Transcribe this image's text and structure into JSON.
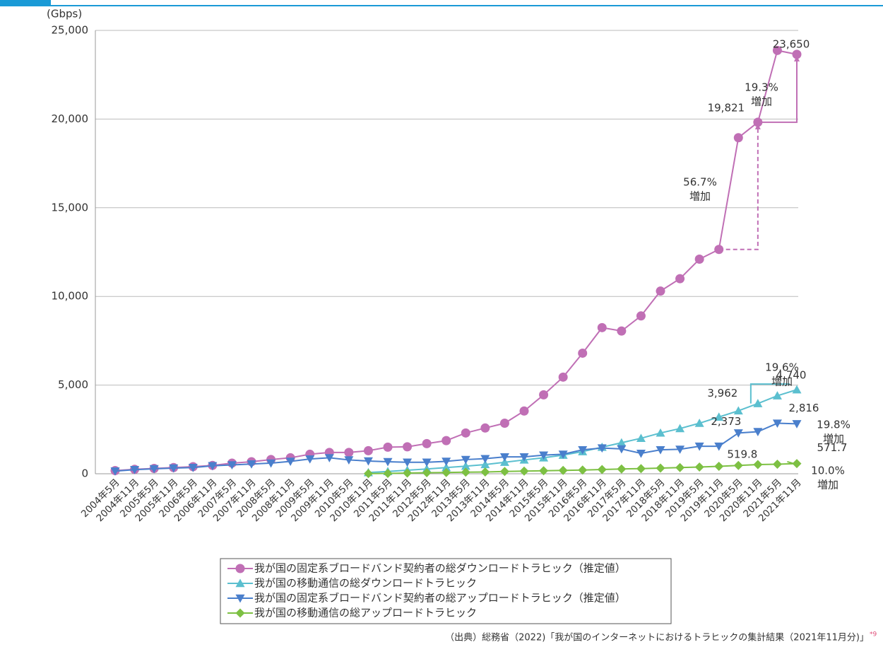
{
  "chart_data": {
    "type": "line",
    "unit_label": "(Gbps)",
    "categories": [
      "2004年5月",
      "2004年11月",
      "2005年5月",
      "2005年11月",
      "2006年5月",
      "2006年11月",
      "2007年5月",
      "2007年11月",
      "2008年5月",
      "2008年11月",
      "2009年5月",
      "2009年11月",
      "2010年5月",
      "2010年11月",
      "2011年5月",
      "2011年11月",
      "2012年5月",
      "2012年11月",
      "2013年5月",
      "2013年11月",
      "2014年5月",
      "2014年11月",
      "2015年5月",
      "2015年11月",
      "2016年5月",
      "2016年11月",
      "2017年5月",
      "2017年11月",
      "2018年5月",
      "2018年11月",
      "2019年5月",
      "2019年11月",
      "2020年5月",
      "2020年11月",
      "2021年5月",
      "2021年11月"
    ],
    "series": [
      {
        "name": "我が国の固定系ブロードバンド契約者の総ダウンロードトラヒック（推定値）",
        "color": "#c06fb5",
        "marker": "circle",
        "values": [
          180,
          250,
          300,
          350,
          400,
          470,
          600,
          680,
          800,
          900,
          1100,
          1200,
          1200,
          1300,
          1500,
          1520,
          1700,
          1870,
          2300,
          2580,
          2850,
          3540,
          4450,
          5450,
          6800,
          8240,
          8050,
          8900,
          10300,
          11000,
          12100,
          12650,
          18950,
          19821,
          23870,
          23650
        ],
        "value_labels": [
          null,
          null,
          null,
          null,
          null,
          null,
          null,
          null,
          null,
          null,
          null,
          null,
          null,
          null,
          null,
          null,
          null,
          null,
          null,
          null,
          null,
          null,
          null,
          null,
          null,
          null,
          null,
          null,
          null,
          null,
          null,
          null,
          null,
          "19,821",
          null,
          "23,650"
        ]
      },
      {
        "name": "我が国の移動通信の総ダウンロードトラヒック",
        "color": "#5bbfcf",
        "marker": "triangle-up",
        "values": [
          null,
          null,
          null,
          null,
          null,
          null,
          null,
          null,
          null,
          null,
          null,
          null,
          null,
          70,
          130,
          200,
          270,
          350,
          430,
          520,
          650,
          780,
          900,
          1050,
          1250,
          1500,
          1750,
          2000,
          2300,
          2550,
          2850,
          3200,
          3550,
          3962,
          4400,
          4740
        ],
        "value_labels": [
          null,
          null,
          null,
          null,
          null,
          null,
          null,
          null,
          null,
          null,
          null,
          null,
          null,
          null,
          null,
          null,
          null,
          null,
          null,
          null,
          null,
          null,
          null,
          null,
          null,
          null,
          null,
          null,
          null,
          null,
          null,
          null,
          null,
          "3,962",
          null,
          "4,740"
        ]
      },
      {
        "name": "我が国の固定系ブロードバンド契約者の総アップロードトラヒック（推定値）",
        "color": "#4a7fcc",
        "marker": "triangle-down",
        "values": [
          150,
          230,
          280,
          320,
          350,
          450,
          500,
          550,
          600,
          700,
          830,
          900,
          780,
          720,
          680,
          650,
          650,
          700,
          800,
          850,
          950,
          950,
          1050,
          1100,
          1350,
          1450,
          1400,
          1150,
          1350,
          1380,
          1550,
          1550,
          2300,
          2373,
          2850,
          2816
        ],
        "value_labels": [
          null,
          null,
          null,
          null,
          null,
          null,
          null,
          null,
          null,
          null,
          null,
          null,
          null,
          null,
          null,
          null,
          null,
          null,
          null,
          null,
          null,
          null,
          null,
          null,
          null,
          null,
          null,
          null,
          null,
          null,
          null,
          null,
          null,
          "2,373",
          null,
          "2,816"
        ]
      },
      {
        "name": "我が国の移動通信の総アップロードトラヒック",
        "color": "#7dc043",
        "marker": "diamond",
        "values": [
          null,
          null,
          null,
          null,
          null,
          null,
          null,
          null,
          null,
          null,
          null,
          null,
          null,
          10,
          20,
          40,
          60,
          70,
          90,
          100,
          130,
          150,
          170,
          190,
          210,
          240,
          270,
          290,
          320,
          350,
          380,
          420,
          470,
          519.8,
          540,
          571.7
        ],
        "value_labels": [
          null,
          null,
          null,
          null,
          null,
          null,
          null,
          null,
          null,
          null,
          null,
          null,
          null,
          null,
          null,
          null,
          null,
          null,
          null,
          null,
          null,
          null,
          null,
          null,
          null,
          null,
          null,
          null,
          null,
          null,
          null,
          null,
          null,
          "519.8",
          null,
          "571.7"
        ]
      }
    ],
    "ylim": [
      0,
      25000
    ],
    "yticks": [
      0,
      {
        "value": 5000,
        "label": "5,000"
      },
      {
        "value": 10000,
        "label": "10,000"
      },
      {
        "value": 15000,
        "label": "15,000"
      },
      {
        "value": 20000,
        "label": "20,000"
      },
      {
        "value": 25000,
        "label": "25,000"
      }
    ],
    "grid": true,
    "annotations": [
      {
        "lines": [
          "19.3%",
          "増加"
        ]
      },
      {
        "lines": [
          "56.7%",
          "増加"
        ]
      },
      {
        "lines": [
          "19.6%",
          "増加"
        ]
      },
      {
        "lines": [
          "19.8%",
          "増加"
        ]
      },
      {
        "lines": [
          "10.0%",
          "増加"
        ]
      }
    ],
    "source": "（出典）総務省（2022)「我が国のインターネットにおけるトラヒックの集計結果（2021年11月分)」",
    "source_note": "*9"
  }
}
